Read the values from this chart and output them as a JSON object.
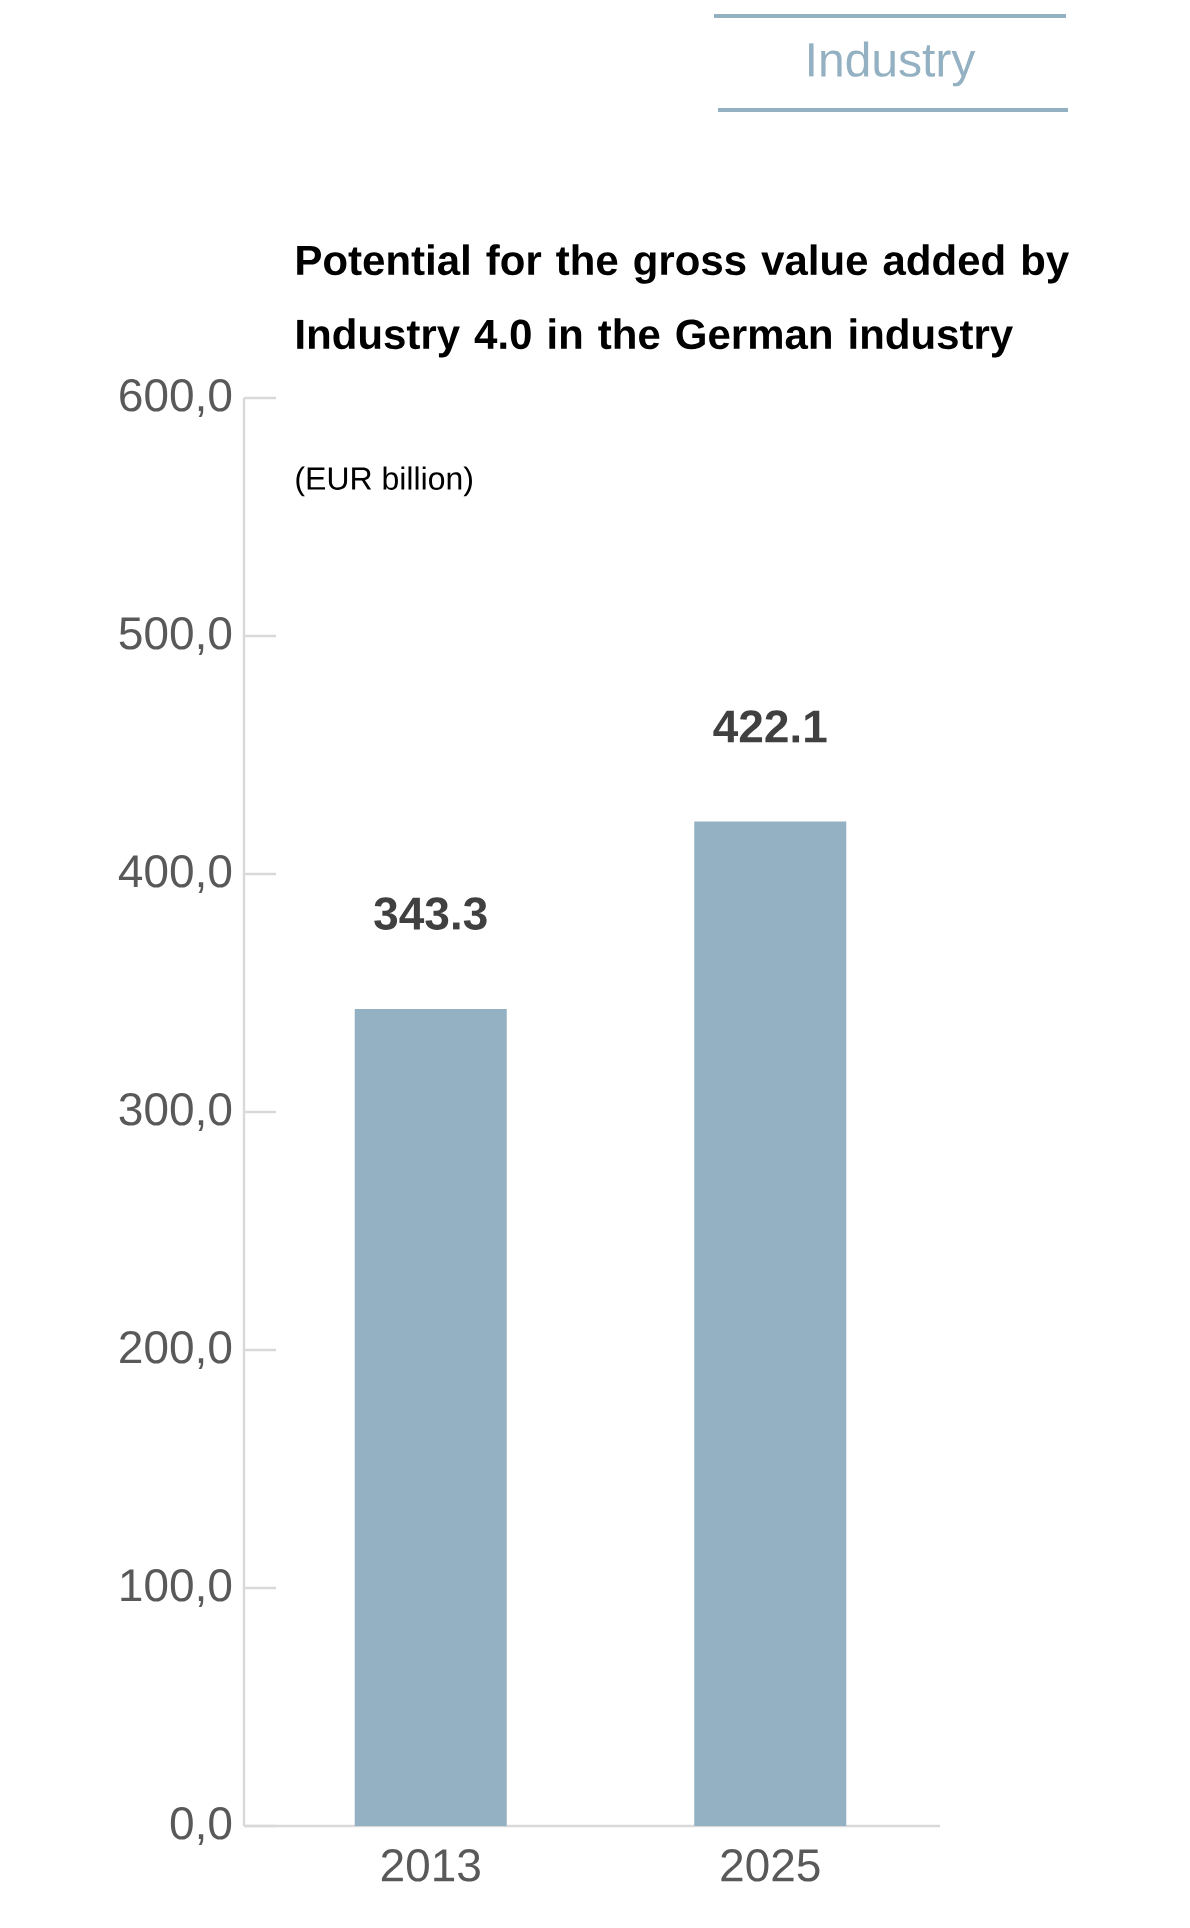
{
  "chart_data": {
    "type": "bar",
    "title": "Potential for the gross value added by Industry 4.0 in the German industry",
    "subtitle": "(EUR billion)",
    "annotations": [
      "Industry"
    ],
    "categories": [
      "2013",
      "2025"
    ],
    "values": [
      343.3,
      422.1
    ],
    "value_labels": [
      "343.3",
      "422.1"
    ],
    "color": "#93b1c2",
    "ylim": [
      0,
      600
    ],
    "yticks": [
      {
        "value": 0,
        "label": "0,0"
      },
      {
        "value": 100,
        "label": "100,0"
      },
      {
        "value": 200,
        "label": "200,0"
      },
      {
        "value": 300,
        "label": "300,0"
      },
      {
        "value": 400,
        "label": "400,0"
      },
      {
        "value": 500,
        "label": "500,0"
      },
      {
        "value": 600,
        "label": "600,0"
      }
    ]
  }
}
